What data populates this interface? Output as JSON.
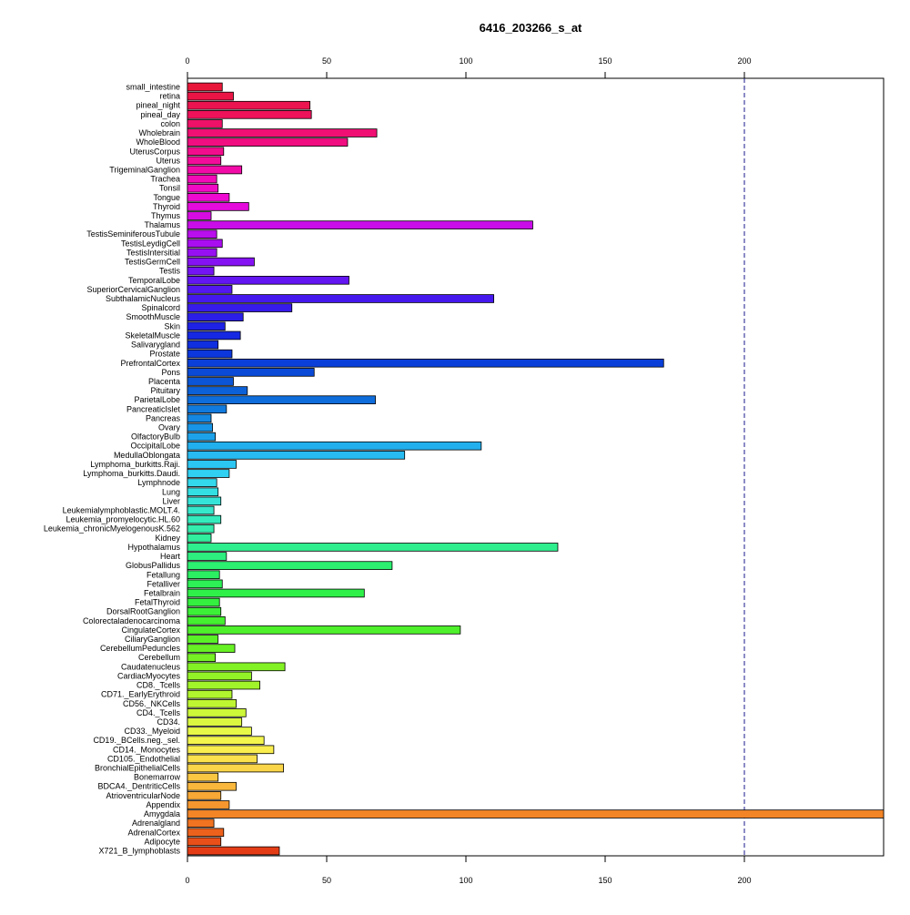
{
  "chart_data": {
    "type": "bar",
    "orientation": "horizontal",
    "title": "6416_203266_s_at",
    "xlabel": "",
    "ylabel": "",
    "xlim": [
      0,
      250
    ],
    "xticks": [
      0,
      50,
      100,
      150,
      200
    ],
    "reference_line": 200,
    "axis_position": "top and bottom",
    "grid": false,
    "categories": [
      "small_intestine",
      "retina",
      "pineal_night",
      "pineal_day",
      "colon",
      "Wholebrain",
      "WholeBlood",
      "UterusCorpus",
      "Uterus",
      "TrigeminalGanglion",
      "Trachea",
      "Tonsil",
      "Tongue",
      "Thyroid",
      "Thymus",
      "Thalamus",
      "TestisSeminiferousTubule",
      "TestisLeydigCell",
      "TestisIntersitial",
      "TestisGermCell",
      "Testis",
      "TemporalLobe",
      "SuperiorCervicalGanglion",
      "SubthalamicNucleus",
      "Spinalcord",
      "SmoothMuscle",
      "Skin",
      "SkeletalMuscle",
      "Salivarygland",
      "Prostate",
      "PrefrontalCortex",
      "Pons",
      "Placenta",
      "Pituitary",
      "ParietalLobe",
      "PancreaticIslet",
      "Pancreas",
      "Ovary",
      "OlfactoryBulb",
      "OccipitalLobe",
      "MedullaOblongata",
      "Lymphoma_burkitts.Raji.",
      "Lymphoma_burkitts.Daudi.",
      "Lymphnode",
      "Lung",
      "Liver",
      "Leukemialymphoblastic.MOLT.4.",
      "Leukemia_promyelocytic.HL.60",
      "Leukemia_chronicMyelogenousK.562",
      "Kidney",
      "Hypothalamus",
      "Heart",
      "GlobusPallidus",
      "Fetallung",
      "Fetalliver",
      "Fetalbrain",
      "FetalThyroid",
      "DorsalRootGanglion",
      "Colorectaladenocarcinoma",
      "CingulateCortex",
      "CiliaryGanglion",
      "CerebellumPeduncles",
      "Cerebellum",
      "Caudatenucleus",
      "CardiacMyocytes",
      "CD8._Tcells",
      "CD71._EarlyErythroid",
      "CD56._NKCells",
      "CD4._Tcells",
      "CD34.",
      "CD33._Myeloid",
      "CD19._BCells.neg._sel.",
      "CD14._Monocytes",
      "CD105._Endothelial",
      "BronchialEpithelialCells",
      "Bonemarrow",
      "BDCA4._DentriticCells",
      "AtrioventricularNode",
      "Appendix",
      "Amygdala",
      "Adrenalgland",
      "AdrenalCortex",
      "Adipocyte",
      "X721_B_lymphoblasts"
    ],
    "values": [
      12.5,
      16.5,
      44,
      44.5,
      12.5,
      68,
      57.5,
      13,
      12,
      19.5,
      10.5,
      11,
      15,
      22,
      8.5,
      124,
      10.5,
      12.5,
      10.5,
      24,
      9.5,
      58,
      16,
      110,
      37.5,
      20,
      13.5,
      19,
      11,
      16,
      171,
      45.5,
      16.5,
      21.5,
      67.5,
      14,
      8.5,
      9,
      10,
      105.5,
      78,
      17.5,
      15,
      10.5,
      11,
      12,
      9.5,
      12,
      9.5,
      8.5,
      133,
      14,
      73.5,
      11.5,
      12.5,
      63.5,
      11.5,
      12,
      13.5,
      98,
      11,
      17,
      10,
      35,
      23,
      26,
      16,
      17.5,
      21,
      19.5,
      23,
      27.5,
      31,
      25,
      34.5,
      11,
      17.5,
      12,
      15,
      250,
      9.5,
      13,
      12,
      33
    ],
    "colors": [
      "#e8173a",
      "#ea1545",
      "#ec1450",
      "#ee125b",
      "#ef1167",
      "#f00f73",
      "#f10e80",
      "#f20d8d",
      "#f30c9a",
      "#f30ba8",
      "#f20bb6",
      "#f10ac4",
      "#ef0ad2",
      "#e50bdd",
      "#d70ce3",
      "#c90de9",
      "#b90eed",
      "#a80ef0",
      "#9710f2",
      "#8512f3",
      "#7413f3",
      "#6315f2",
      "#5417f0",
      "#4519ee",
      "#371beb",
      "#2a1ee8",
      "#1e22e5",
      "#1628e2",
      "#102fdf",
      "#0c37dc",
      "#0a40d9",
      "#0a4ad7",
      "#0b55d6",
      "#0c61d8",
      "#0e6ddb",
      "#117ade",
      "#1487e2",
      "#1895e6",
      "#1da2ea",
      "#22afee",
      "#27bbf1",
      "#2cc6f3",
      "#30d0f2",
      "#33d8ec",
      "#34dfe3",
      "#35e4d8",
      "#35e8cb",
      "#34ebbd",
      "#33ecae",
      "#31ed9e",
      "#2fee8e",
      "#2def7f",
      "#2cf070",
      "#2bf062",
      "#2cf055",
      "#2ff049",
      "#34f03f",
      "#3bf037",
      "#44f030",
      "#4ef02b",
      "#5af127",
      "#67f125",
      "#75f124",
      "#83f224",
      "#92f326",
      "#a1f429",
      "#b0f52d",
      "#bff632",
      "#cdf739",
      "#dbf840",
      "#e8f847",
      "#f3f54c",
      "#f9ed4f",
      "#fbe24d",
      "#fbd549",
      "#fac743",
      "#f9b83c",
      "#f7a835",
      "#f5972e",
      "#f38527",
      "#f07321",
      "#ec611c",
      "#e84f19",
      "#e43d16"
    ]
  }
}
